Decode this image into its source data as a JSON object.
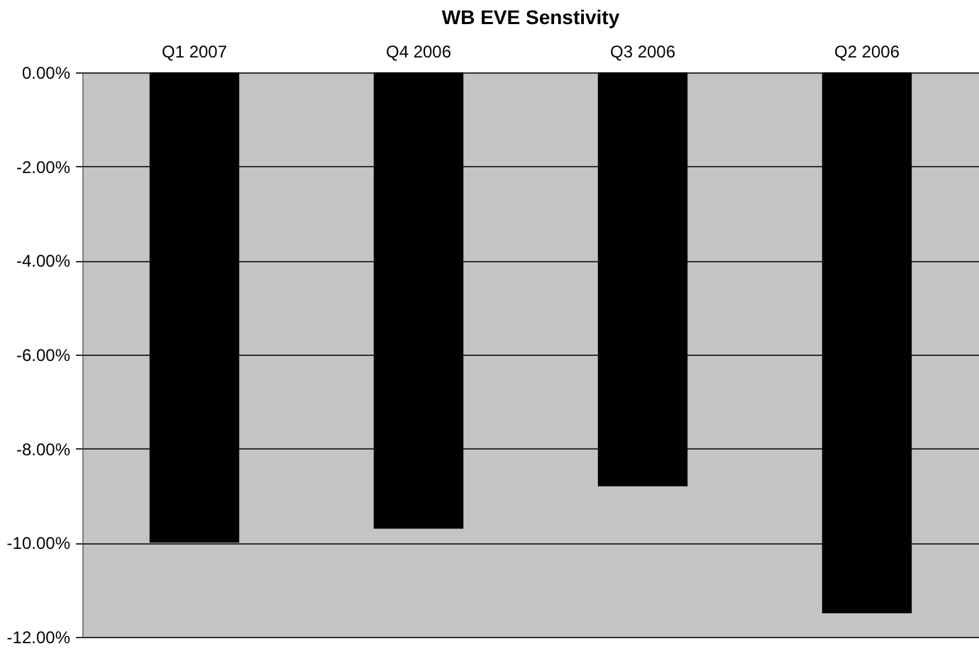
{
  "chart_data": {
    "type": "bar",
    "title": "WB EVE Senstivity",
    "categories": [
      "Q1 2007",
      "Q4 2006",
      "Q3 2006",
      "Q2 2006"
    ],
    "values": [
      -10.0,
      -9.7,
      -8.8,
      -11.5
    ],
    "color": "#000000",
    "ylim": [
      -12,
      0
    ],
    "yticks": [
      {
        "value": 0,
        "label": "0.00%"
      },
      {
        "value": -2,
        "label": "-2.00%"
      },
      {
        "value": -4,
        "label": "-4.00%"
      },
      {
        "value": -6,
        "label": "-6.00%"
      },
      {
        "value": -8,
        "label": "-8.00%"
      },
      {
        "value": -10,
        "label": "-10.00%"
      },
      {
        "value": -12,
        "label": "-12.00%"
      }
    ],
    "grid": "y"
  }
}
